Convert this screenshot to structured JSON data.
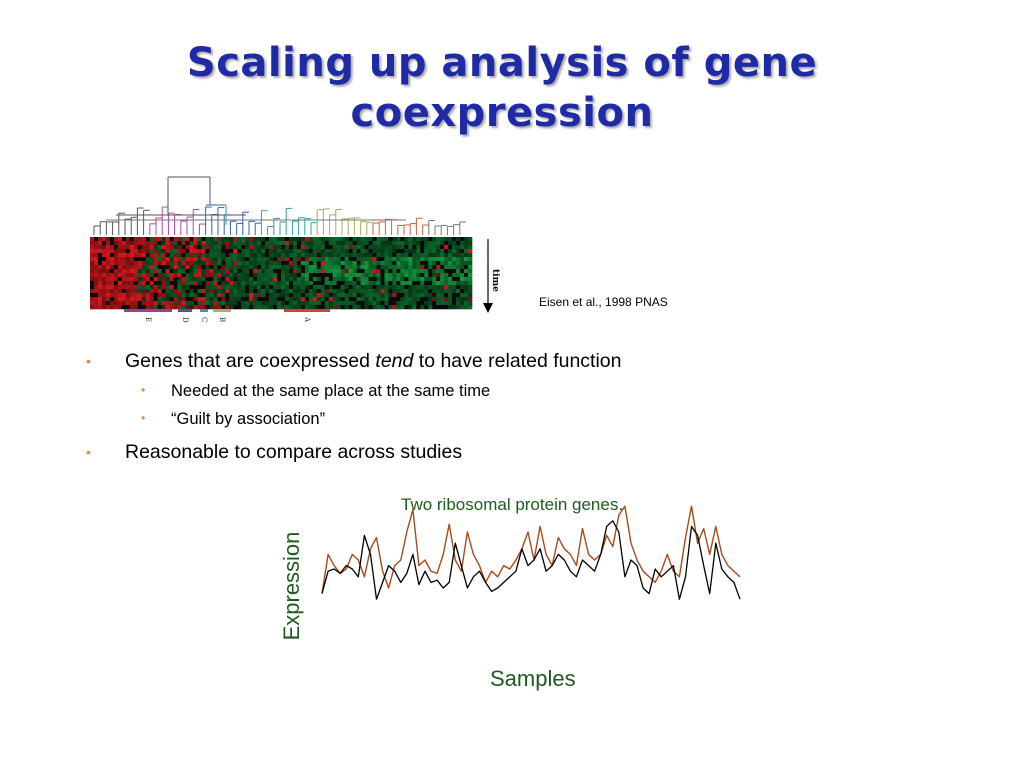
{
  "slide": {
    "title_line1": "Scaling up analysis of gene",
    "title_line2": "coexpression",
    "citation": "Eisen et al., 1998 PNAS"
  },
  "figure": {
    "time_label": "time",
    "cluster_labels": [
      "E",
      "D",
      "C",
      "B",
      "A"
    ],
    "colors": {
      "red": "#d21a1f",
      "green": "#17a03c",
      "black": "#0a0a0a"
    }
  },
  "bullets": [
    {
      "text_before": "Genes that are coexpressed ",
      "emphasis": "tend",
      "text_after": " to have related function"
    },
    {
      "text": "Needed at the same place at the same time"
    },
    {
      "text": "“Guilt by association”"
    },
    {
      "text": "Reasonable to compare across studies"
    }
  ],
  "plot": {
    "caption": "Two ribosomal protein genes.",
    "ylabel": "Expression",
    "xlabel": "Samples"
  },
  "chart_data": {
    "type": "line",
    "title": "Two ribosomal protein genes.",
    "xlabel": "Samples",
    "ylabel": "Expression",
    "colors": {
      "series_a": "#a94a1c",
      "series_b": "#000000"
    },
    "series": [
      {
        "values": [
          0.2,
          0.55,
          0.45,
          0.38,
          0.42,
          0.55,
          0.5,
          0.35,
          0.6,
          0.7,
          0.4,
          0.25,
          0.45,
          0.5,
          0.75,
          0.95,
          0.45,
          0.5,
          0.4,
          0.38,
          0.55,
          0.82,
          0.5,
          0.4,
          0.75,
          0.55,
          0.45,
          0.3,
          0.4,
          0.35,
          0.45,
          0.42,
          0.5,
          0.6,
          0.75,
          0.5,
          0.8,
          0.55,
          0.45,
          0.7,
          0.6,
          0.55,
          0.45,
          0.78,
          0.55,
          0.5,
          0.55,
          0.72,
          0.62,
          0.9,
          0.98,
          0.65,
          0.5,
          0.4,
          0.35,
          0.3,
          0.4,
          0.55,
          0.4,
          0.35,
          0.7,
          0.98,
          0.65,
          0.78,
          0.55,
          0.8,
          0.55,
          0.45,
          0.4,
          0.35
        ]
      },
      {
        "values": [
          0.2,
          0.4,
          0.42,
          0.38,
          0.45,
          0.42,
          0.35,
          0.72,
          0.55,
          0.15,
          0.3,
          0.45,
          0.4,
          0.3,
          0.38,
          0.55,
          0.28,
          0.4,
          0.3,
          0.32,
          0.25,
          0.3,
          0.65,
          0.45,
          0.25,
          0.35,
          0.4,
          0.3,
          0.22,
          0.25,
          0.3,
          0.35,
          0.4,
          0.6,
          0.45,
          0.5,
          0.6,
          0.4,
          0.45,
          0.55,
          0.5,
          0.4,
          0.35,
          0.5,
          0.45,
          0.4,
          0.55,
          0.8,
          0.85,
          0.75,
          0.35,
          0.5,
          0.45,
          0.25,
          0.2,
          0.42,
          0.35,
          0.4,
          0.45,
          0.15,
          0.35,
          0.8,
          0.72,
          0.45,
          0.2,
          0.65,
          0.42,
          0.35,
          0.3,
          0.15
        ]
      }
    ]
  }
}
